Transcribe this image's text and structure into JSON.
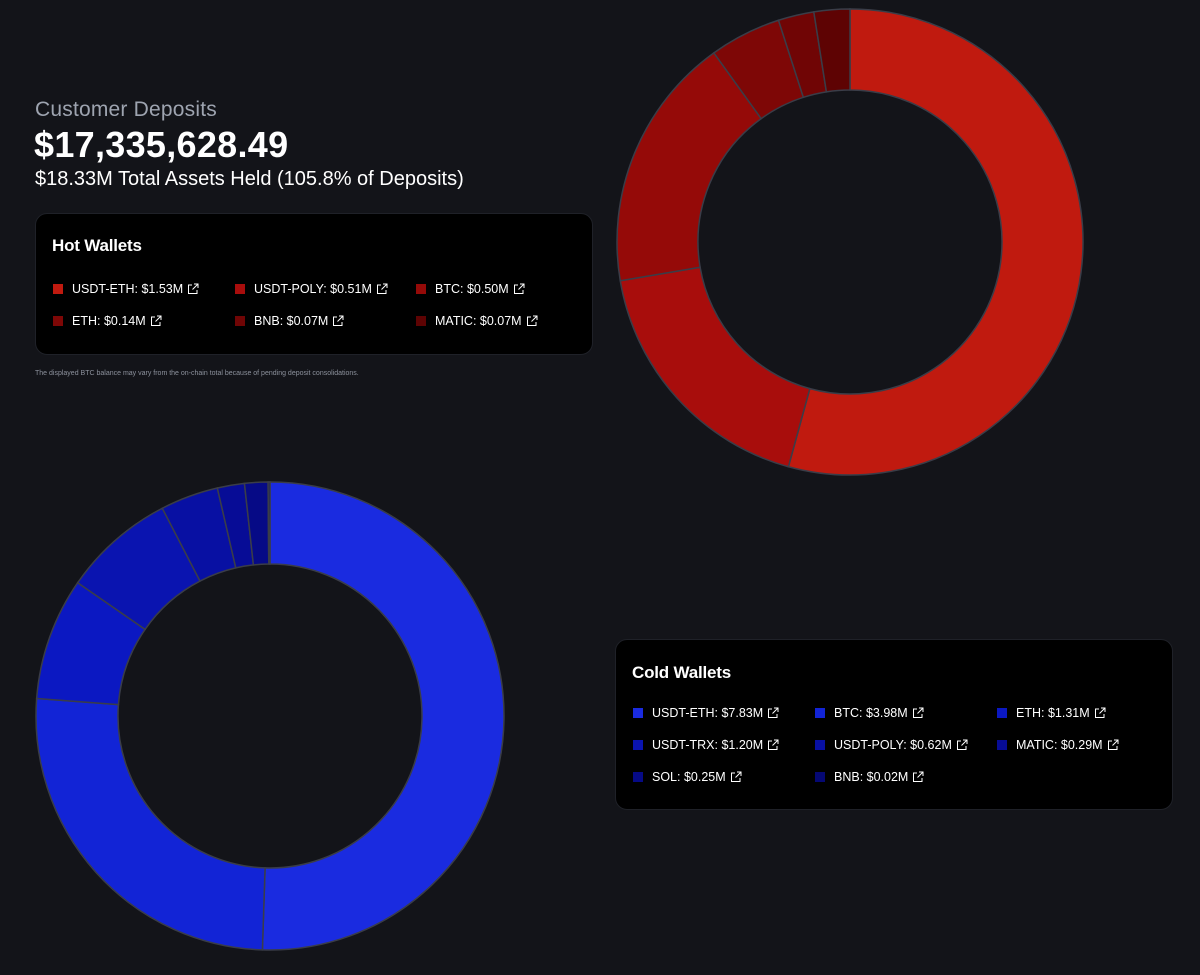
{
  "header": {
    "subtitle": "Customer Deposits",
    "total": "$17,335,628.49",
    "assets_line": "$18.33M Total Assets Held (105.8% of Deposits)"
  },
  "note": "The displayed BTC balance may vary from the on-chain total because of pending deposit consolidations.",
  "hot_wallets": {
    "title": "Hot Wallets",
    "items": [
      {
        "label": "USDT-ETH: $1.53M",
        "color": "#c01a0f"
      },
      {
        "label": "USDT-POLY: $0.51M",
        "color": "#a80d0c"
      },
      {
        "label": "BTC: $0.50M",
        "color": "#950a08"
      },
      {
        "label": "ETH: $0.14M",
        "color": "#7e0706"
      },
      {
        "label": "BNB: $0.07M",
        "color": "#700505"
      },
      {
        "label": "MATIC: $0.07M",
        "color": "#5e0303"
      }
    ]
  },
  "cold_wallets": {
    "title": "Cold Wallets",
    "items": [
      {
        "label": "USDT-ETH: $7.83M",
        "color": "#1a2be0"
      },
      {
        "label": "BTC: $3.98M",
        "color": "#1224d6"
      },
      {
        "label": "ETH: $1.31M",
        "color": "#0b18c2"
      },
      {
        "label": "USDT-TRX: $1.20M",
        "color": "#0a14b0"
      },
      {
        "label": "USDT-POLY: $0.62M",
        "color": "#0810a3"
      },
      {
        "label": "MATIC: $0.29M",
        "color": "#070c96"
      },
      {
        "label": "SOL: $0.25M",
        "color": "#060a86"
      },
      {
        "label": "BNB: $0.02M",
        "color": "#050874"
      }
    ]
  },
  "chart_data": [
    {
      "type": "pie",
      "name": "hot-wallets-donut",
      "categories": [
        "USDT-ETH",
        "USDT-POLY",
        "BTC",
        "ETH",
        "BNB",
        "MATIC"
      ],
      "values": [
        1.53,
        0.51,
        0.5,
        0.14,
        0.07,
        0.07
      ],
      "unit": "$M",
      "colors": [
        "#c01a0f",
        "#a80d0c",
        "#950a08",
        "#7e0706",
        "#700505",
        "#5e0303"
      ],
      "donut": true
    },
    {
      "type": "pie",
      "name": "cold-wallets-donut",
      "categories": [
        "USDT-ETH",
        "BTC",
        "ETH",
        "USDT-TRX",
        "USDT-POLY",
        "MATIC",
        "SOL",
        "BNB"
      ],
      "values": [
        7.83,
        3.98,
        1.31,
        1.2,
        0.62,
        0.29,
        0.25,
        0.02
      ],
      "unit": "$M",
      "colors": [
        "#1a2be0",
        "#1224d6",
        "#0b18c2",
        "#0a14b0",
        "#0810a3",
        "#070c96",
        "#060a86",
        "#050874"
      ],
      "donut": true
    }
  ]
}
